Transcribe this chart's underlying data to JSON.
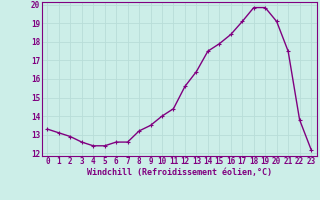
{
  "x": [
    0,
    1,
    2,
    3,
    4,
    5,
    6,
    7,
    8,
    9,
    10,
    11,
    12,
    13,
    14,
    15,
    16,
    17,
    18,
    19,
    20,
    21,
    22,
    23
  ],
  "y": [
    13.3,
    13.1,
    12.9,
    12.6,
    12.4,
    12.4,
    12.6,
    12.6,
    13.2,
    13.5,
    14.0,
    14.4,
    15.6,
    16.4,
    17.5,
    17.9,
    18.4,
    19.1,
    19.85,
    19.85,
    19.1,
    17.5,
    13.8,
    12.2
  ],
  "line_color": "#800080",
  "marker": "+",
  "marker_size": 3,
  "bg_color": "#cceee8",
  "grid_color": "#b8ddd8",
  "xlabel": "Windchill (Refroidissement éolien,°C)",
  "xlabel_color": "#800080",
  "tick_color": "#800080",
  "ylim": [
    12,
    20
  ],
  "xlim": [
    -0.5,
    23.5
  ],
  "yticks": [
    12,
    13,
    14,
    15,
    16,
    17,
    18,
    19,
    20
  ],
  "xticks": [
    0,
    1,
    2,
    3,
    4,
    5,
    6,
    7,
    8,
    9,
    10,
    11,
    12,
    13,
    14,
    15,
    16,
    17,
    18,
    19,
    20,
    21,
    22,
    23
  ],
  "line_width": 1.0,
  "tick_fontsize": 5.5,
  "xlabel_fontsize": 6.0
}
